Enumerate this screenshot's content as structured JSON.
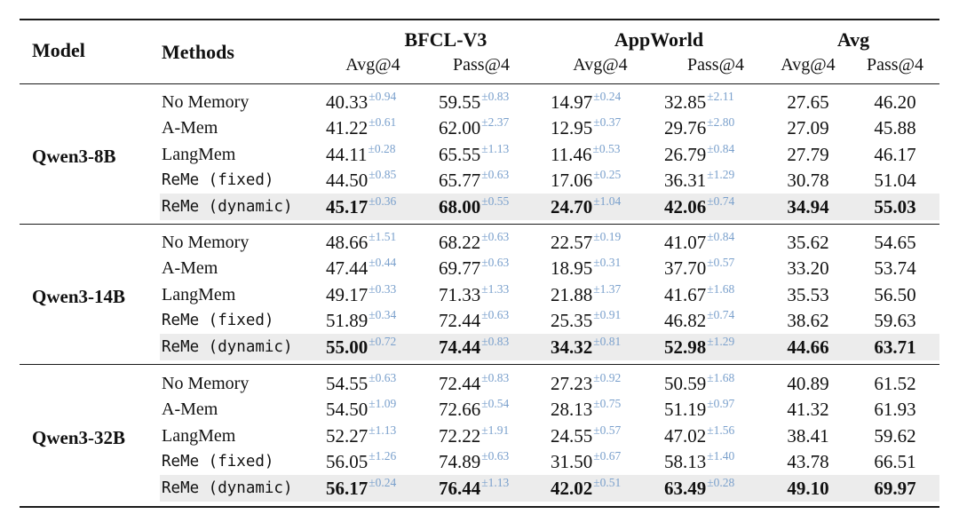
{
  "header": {
    "model": "Model",
    "methods": "Methods",
    "groups": [
      "BFCL-V3",
      "AppWorld",
      "Avg"
    ],
    "metrics": [
      "Avg@4",
      "Pass@4",
      "Avg@4",
      "Pass@4",
      "Avg@4",
      "Pass@4"
    ]
  },
  "groups": [
    {
      "model": "Qwen3-8B",
      "rows": [
        {
          "method": "No Memory",
          "mono": false,
          "bold": false,
          "bfcl_avg": "40.33",
          "bfcl_avg_sd": "±0.94",
          "bfcl_pass": "59.55",
          "bfcl_pass_sd": "±0.83",
          "app_avg": "14.97",
          "app_avg_sd": "±0.24",
          "app_pass": "32.85",
          "app_pass_sd": "±2.11",
          "avg_avg": "27.65",
          "avg_pass": "46.20"
        },
        {
          "method": "A-Mem",
          "mono": false,
          "bold": false,
          "bfcl_avg": "41.22",
          "bfcl_avg_sd": "±0.61",
          "bfcl_pass": "62.00",
          "bfcl_pass_sd": "±2.37",
          "app_avg": "12.95",
          "app_avg_sd": "±0.37",
          "app_pass": "29.76",
          "app_pass_sd": "±2.80",
          "avg_avg": "27.09",
          "avg_pass": "45.88"
        },
        {
          "method": "LangMem",
          "mono": false,
          "bold": false,
          "bfcl_avg": "44.11",
          "bfcl_avg_sd": "±0.28",
          "bfcl_pass": "65.55",
          "bfcl_pass_sd": "±1.13",
          "app_avg": "11.46",
          "app_avg_sd": "±0.53",
          "app_pass": "26.79",
          "app_pass_sd": "±0.84",
          "avg_avg": "27.79",
          "avg_pass": "46.17"
        },
        {
          "method": "ReMe (fixed)",
          "mono": true,
          "bold": false,
          "bfcl_avg": "44.50",
          "bfcl_avg_sd": "±0.85",
          "bfcl_pass": "65.77",
          "bfcl_pass_sd": "±0.63",
          "app_avg": "17.06",
          "app_avg_sd": "±0.25",
          "app_pass": "36.31",
          "app_pass_sd": "±1.29",
          "avg_avg": "30.78",
          "avg_pass": "51.04"
        },
        {
          "method": "ReMe (dynamic)",
          "mono": true,
          "bold": true,
          "bfcl_avg": "45.17",
          "bfcl_avg_sd": "±0.36",
          "bfcl_pass": "68.00",
          "bfcl_pass_sd": "±0.55",
          "app_avg": "24.70",
          "app_avg_sd": "±1.04",
          "app_pass": "42.06",
          "app_pass_sd": "±0.74",
          "avg_avg": "34.94",
          "avg_pass": "55.03"
        }
      ]
    },
    {
      "model": "Qwen3-14B",
      "rows": [
        {
          "method": "No Memory",
          "mono": false,
          "bold": false,
          "bfcl_avg": "48.66",
          "bfcl_avg_sd": "±1.51",
          "bfcl_pass": "68.22",
          "bfcl_pass_sd": "±0.63",
          "app_avg": "22.57",
          "app_avg_sd": "±0.19",
          "app_pass": "41.07",
          "app_pass_sd": "±0.84",
          "avg_avg": "35.62",
          "avg_pass": "54.65"
        },
        {
          "method": "A-Mem",
          "mono": false,
          "bold": false,
          "bfcl_avg": "47.44",
          "bfcl_avg_sd": "±0.44",
          "bfcl_pass": "69.77",
          "bfcl_pass_sd": "±0.63",
          "app_avg": "18.95",
          "app_avg_sd": "±0.31",
          "app_pass": "37.70",
          "app_pass_sd": "±0.57",
          "avg_avg": "33.20",
          "avg_pass": "53.74"
        },
        {
          "method": "LangMem",
          "mono": false,
          "bold": false,
          "bfcl_avg": "49.17",
          "bfcl_avg_sd": "±0.33",
          "bfcl_pass": "71.33",
          "bfcl_pass_sd": "±1.33",
          "app_avg": "21.88",
          "app_avg_sd": "±1.37",
          "app_pass": "41.67",
          "app_pass_sd": "±1.68",
          "avg_avg": "35.53",
          "avg_pass": "56.50"
        },
        {
          "method": "ReMe (fixed)",
          "mono": true,
          "bold": false,
          "bfcl_avg": "51.89",
          "bfcl_avg_sd": "±0.34",
          "bfcl_pass": "72.44",
          "bfcl_pass_sd": "±0.63",
          "app_avg": "25.35",
          "app_avg_sd": "±0.91",
          "app_pass": "46.82",
          "app_pass_sd": "±0.74",
          "avg_avg": "38.62",
          "avg_pass": "59.63"
        },
        {
          "method": "ReMe (dynamic)",
          "mono": true,
          "bold": true,
          "bfcl_avg": "55.00",
          "bfcl_avg_sd": "±0.72",
          "bfcl_pass": "74.44",
          "bfcl_pass_sd": "±0.83",
          "app_avg": "34.32",
          "app_avg_sd": "±0.81",
          "app_pass": "52.98",
          "app_pass_sd": "±1.29",
          "avg_avg": "44.66",
          "avg_pass": "63.71"
        }
      ]
    },
    {
      "model": "Qwen3-32B",
      "rows": [
        {
          "method": "No Memory",
          "mono": false,
          "bold": false,
          "bfcl_avg": "54.55",
          "bfcl_avg_sd": "±0.63",
          "bfcl_pass": "72.44",
          "bfcl_pass_sd": "±0.83",
          "app_avg": "27.23",
          "app_avg_sd": "±0.92",
          "app_pass": "50.59",
          "app_pass_sd": "±1.68",
          "avg_avg": "40.89",
          "avg_pass": "61.52"
        },
        {
          "method": "A-Mem",
          "mono": false,
          "bold": false,
          "bfcl_avg": "54.50",
          "bfcl_avg_sd": "±1.09",
          "bfcl_pass": "72.66",
          "bfcl_pass_sd": "±0.54",
          "app_avg": "28.13",
          "app_avg_sd": "±0.75",
          "app_pass": "51.19",
          "app_pass_sd": "±0.97",
          "avg_avg": "41.32",
          "avg_pass": "61.93"
        },
        {
          "method": "LangMem",
          "mono": false,
          "bold": false,
          "bfcl_avg": "52.27",
          "bfcl_avg_sd": "±1.13",
          "bfcl_pass": "72.22",
          "bfcl_pass_sd": "±1.91",
          "app_avg": "24.55",
          "app_avg_sd": "±0.57",
          "app_pass": "47.02",
          "app_pass_sd": "±1.56",
          "avg_avg": "38.41",
          "avg_pass": "59.62"
        },
        {
          "method": "ReMe (fixed)",
          "mono": true,
          "bold": false,
          "bfcl_avg": "56.05",
          "bfcl_avg_sd": "±1.26",
          "bfcl_pass": "74.89",
          "bfcl_pass_sd": "±0.63",
          "app_avg": "31.50",
          "app_avg_sd": "±0.67",
          "app_pass": "58.13",
          "app_pass_sd": "±1.40",
          "avg_avg": "43.78",
          "avg_pass": "66.51"
        },
        {
          "method": "ReMe (dynamic)",
          "mono": true,
          "bold": true,
          "bfcl_avg": "56.17",
          "bfcl_avg_sd": "±0.24",
          "bfcl_pass": "76.44",
          "bfcl_pass_sd": "±1.13",
          "app_avg": "42.02",
          "app_avg_sd": "±0.51",
          "app_pass": "63.49",
          "app_pass_sd": "±0.28",
          "avg_avg": "49.10",
          "avg_pass": "69.97"
        }
      ]
    }
  ]
}
